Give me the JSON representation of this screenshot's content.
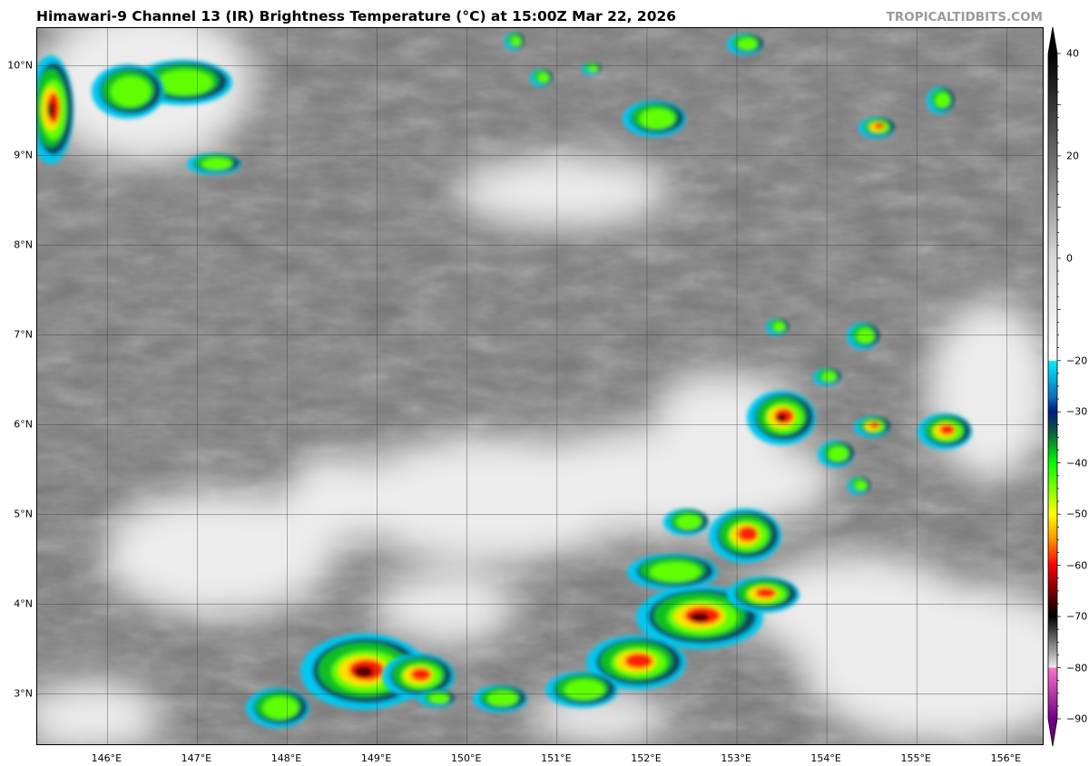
{
  "title": "Himawari-9 Channel 13 (IR) Brightness Temperature (°C) at 15:00Z Mar 22, 2026",
  "brand": "TROPICALTIDBITS.COM",
  "map": {
    "lon_range": [
      145.22,
      156.42
    ],
    "lat_range": [
      2.42,
      10.42
    ],
    "lon_ticks": [
      146,
      147,
      148,
      149,
      150,
      151,
      152,
      153,
      154,
      155,
      156
    ],
    "lon_labels": [
      "146°E",
      "147°E",
      "148°E",
      "149°E",
      "150°E",
      "151°E",
      "152°E",
      "153°E",
      "154°E",
      "155°E",
      "156°E"
    ],
    "lat_ticks": [
      3,
      4,
      5,
      6,
      7,
      8,
      9,
      10
    ],
    "lat_labels": [
      "3°N",
      "4°N",
      "5°N",
      "6°N",
      "7°N",
      "8°N",
      "9°N",
      "10°N"
    ],
    "grid": true
  },
  "colorbar": {
    "range": [
      -90,
      40
    ],
    "ticks": [
      40,
      20,
      0,
      -20,
      -30,
      -40,
      -50,
      -60,
      -70,
      -80,
      -90
    ],
    "tick_labels": [
      "40",
      "20",
      "0",
      "−20",
      "−30",
      "−40",
      "−50",
      "−60",
      "−70",
      "−80",
      "−90"
    ],
    "stops": [
      {
        "t": 40,
        "c": "#000000"
      },
      {
        "t": 20,
        "c": "#6a6a6a"
      },
      {
        "t": 0,
        "c": "#d8d8d8"
      },
      {
        "t": -20,
        "c": "#ffffff"
      },
      {
        "t": -20,
        "c": "#00f0ff"
      },
      {
        "t": -27,
        "c": "#0a70c0"
      },
      {
        "t": -30,
        "c": "#001a80"
      },
      {
        "t": -34,
        "c": "#0b5a40"
      },
      {
        "t": -40,
        "c": "#00ff00"
      },
      {
        "t": -50,
        "c": "#ffff00"
      },
      {
        "t": -55,
        "c": "#ff9000"
      },
      {
        "t": -60,
        "c": "#ff0000"
      },
      {
        "t": -66,
        "c": "#600000"
      },
      {
        "t": -70,
        "c": "#000000"
      },
      {
        "t": -80,
        "c": "#ececec"
      },
      {
        "t": -80,
        "c": "#ff70d0"
      },
      {
        "t": -90,
        "c": "#700080"
      }
    ]
  }
}
